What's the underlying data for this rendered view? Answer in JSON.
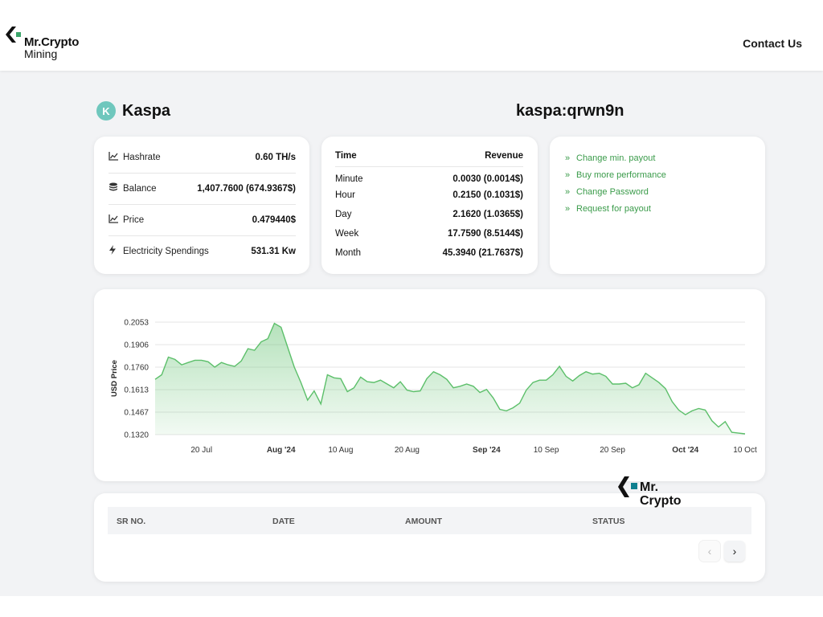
{
  "brand": {
    "line1": "Mr.Crypto",
    "line2": "Mining"
  },
  "nav": {
    "contact": "Contact Us"
  },
  "coin": {
    "name": "Kaspa",
    "icon": "kaspa-logo-icon",
    "wallet": "kaspa:qrwn9n"
  },
  "stats": [
    {
      "icon": "line-chart-icon",
      "label": "Hashrate",
      "value": "0.60 TH/s"
    },
    {
      "icon": "coins-stack-icon",
      "label": "Balance",
      "value": "1,407.7600  (674.9367$)"
    },
    {
      "icon": "line-chart-icon",
      "label": "Price",
      "value": "0.479440$"
    },
    {
      "icon": "lightning-icon",
      "label": "Electricity Spendings",
      "value": "531.31 Kw"
    }
  ],
  "revenue": {
    "col_time": "Time",
    "col_revenue": "Revenue",
    "rows": [
      {
        "time": "Minute",
        "value": "0.0030  (0.0014$)"
      },
      {
        "time": "Hour",
        "value": "0.2150  (0.1031$)"
      },
      {
        "time": "Day",
        "value": "2.1620  (1.0365$)"
      },
      {
        "time": "Week",
        "value": "17.7590  (8.5144$)"
      },
      {
        "time": "Month",
        "value": "45.3940  (21.7637$)"
      }
    ]
  },
  "actions": [
    {
      "label": "Change min. payout"
    },
    {
      "label": "Buy more performance"
    },
    {
      "label": "Change Password"
    },
    {
      "label": "Request for payout"
    }
  ],
  "chart_data": {
    "type": "area",
    "ylabel": "USD Price",
    "ylim": [
      0.132,
      0.2053
    ],
    "yticks": [
      "0.2053",
      "0.1906",
      "0.1760",
      "0.1613",
      "0.1467",
      "0.1320"
    ],
    "xticks": [
      {
        "label": "20 Jul",
        "bold": false
      },
      {
        "label": "Aug '24",
        "bold": true
      },
      {
        "label": "10 Aug",
        "bold": false
      },
      {
        "label": "20 Aug",
        "bold": false
      },
      {
        "label": "Sep '24",
        "bold": true
      },
      {
        "label": "10 Sep",
        "bold": false
      },
      {
        "label": "20 Sep",
        "bold": false
      },
      {
        "label": "Oct '24",
        "bold": true
      },
      {
        "label": "10 Oct",
        "bold": false
      }
    ],
    "x_start": "2024-07-13",
    "x_end": "2024-10-10",
    "grid": true,
    "color": "#5cbf6a",
    "values": [
      0.168,
      0.171,
      0.1825,
      0.181,
      0.1775,
      0.179,
      0.1805,
      0.1805,
      0.1795,
      0.176,
      0.179,
      0.1775,
      0.1765,
      0.18,
      0.188,
      0.187,
      0.1925,
      0.1945,
      0.2045,
      0.202,
      0.189,
      0.176,
      0.166,
      0.1545,
      0.1605,
      0.152,
      0.171,
      0.169,
      0.1685,
      0.16,
      0.1625,
      0.1695,
      0.1665,
      0.166,
      0.1675,
      0.165,
      0.1625,
      0.1665,
      0.161,
      0.16,
      0.1605,
      0.1685,
      0.173,
      0.171,
      0.168,
      0.1625,
      0.1635,
      0.165,
      0.1635,
      0.1595,
      0.1615,
      0.156,
      0.1485,
      0.1475,
      0.1495,
      0.1525,
      0.161,
      0.166,
      0.1675,
      0.1675,
      0.171,
      0.1765,
      0.17,
      0.167,
      0.1705,
      0.173,
      0.1715,
      0.172,
      0.17,
      0.165,
      0.165,
      0.1655,
      0.1625,
      0.1645,
      0.172,
      0.169,
      0.166,
      0.162,
      0.1535,
      0.148,
      0.145,
      0.1475,
      0.149,
      0.148,
      0.141,
      0.137,
      0.1405,
      0.1335,
      0.133,
      0.1325
    ]
  },
  "table": {
    "headers": [
      "SR NO.",
      "DATE",
      "AMOUNT",
      "STATUS"
    ]
  },
  "pagination": {
    "prev": "‹",
    "next": "›"
  },
  "watermark": {
    "line1": "Mr.",
    "line2": "Crypto"
  }
}
